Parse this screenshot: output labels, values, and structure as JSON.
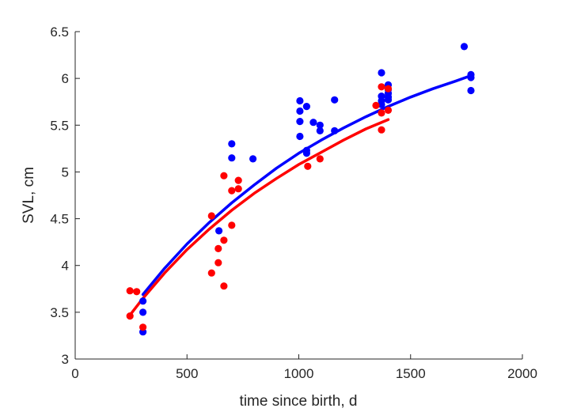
{
  "chart_data": {
    "type": "scatter",
    "xlabel": "time since birth, d",
    "ylabel": "SVL, cm",
    "xlim": [
      0,
      2000
    ],
    "ylim": [
      3,
      6.5
    ],
    "xticks": [
      "0",
      "500",
      "1000",
      "1500",
      "2000"
    ],
    "yticks": [
      "3",
      "3.5",
      "4",
      "4.5",
      "5",
      "5.5",
      "6",
      "6.5"
    ],
    "grid": false,
    "legend": "none",
    "series": [
      {
        "color": "#0000ff",
        "points": [
          [
            303,
            3.29
          ],
          [
            303,
            3.5
          ],
          [
            303,
            3.62
          ],
          [
            643,
            4.37
          ],
          [
            700,
            5.15
          ],
          [
            700,
            5.3
          ],
          [
            795,
            5.14
          ],
          [
            1005,
            5.38
          ],
          [
            1005,
            5.54
          ],
          [
            1005,
            5.65
          ],
          [
            1005,
            5.76
          ],
          [
            1035,
            5.2
          ],
          [
            1035,
            5.23
          ],
          [
            1035,
            5.7
          ],
          [
            1065,
            5.53
          ],
          [
            1095,
            5.44
          ],
          [
            1095,
            5.5
          ],
          [
            1160,
            5.77
          ],
          [
            1160,
            5.44
          ],
          [
            1370,
            5.72
          ],
          [
            1370,
            5.76
          ],
          [
            1370,
            5.81
          ],
          [
            1370,
            6.06
          ],
          [
            1400,
            5.77
          ],
          [
            1400,
            5.8
          ],
          [
            1400,
            5.84
          ],
          [
            1400,
            5.88
          ],
          [
            1400,
            5.93
          ],
          [
            1740,
            6.34
          ],
          [
            1770,
            5.87
          ],
          [
            1770,
            6.01
          ],
          [
            1770,
            6.04
          ]
        ],
        "fit": [
          [
            303,
            3.69
          ],
          [
            400,
            3.97
          ],
          [
            500,
            4.23
          ],
          [
            600,
            4.46
          ],
          [
            700,
            4.67
          ],
          [
            800,
            4.86
          ],
          [
            900,
            5.04
          ],
          [
            1000,
            5.2
          ],
          [
            1100,
            5.34
          ],
          [
            1200,
            5.47
          ],
          [
            1300,
            5.59
          ],
          [
            1400,
            5.7
          ],
          [
            1500,
            5.8
          ],
          [
            1600,
            5.89
          ],
          [
            1700,
            5.97
          ],
          [
            1770,
            6.03
          ]
        ]
      },
      {
        "color": "#ff0000",
        "points": [
          [
            245,
            3.46
          ],
          [
            245,
            3.73
          ],
          [
            275,
            3.72
          ],
          [
            303,
            3.34
          ],
          [
            610,
            3.92
          ],
          [
            610,
            4.53
          ],
          [
            640,
            4.03
          ],
          [
            640,
            4.18
          ],
          [
            665,
            3.78
          ],
          [
            665,
            4.27
          ],
          [
            665,
            4.96
          ],
          [
            700,
            4.43
          ],
          [
            700,
            4.8
          ],
          [
            730,
            4.82
          ],
          [
            730,
            4.91
          ],
          [
            1040,
            5.06
          ],
          [
            1095,
            5.14
          ],
          [
            1345,
            5.71
          ],
          [
            1370,
            5.45
          ],
          [
            1370,
            5.63
          ],
          [
            1370,
            5.91
          ],
          [
            1400,
            5.66
          ],
          [
            1400,
            5.89
          ]
        ],
        "fit": [
          [
            245,
            3.47
          ],
          [
            300,
            3.64
          ],
          [
            400,
            3.92
          ],
          [
            500,
            4.17
          ],
          [
            600,
            4.39
          ],
          [
            700,
            4.59
          ],
          [
            800,
            4.77
          ],
          [
            900,
            4.93
          ],
          [
            1000,
            5.08
          ],
          [
            1100,
            5.21
          ],
          [
            1200,
            5.34
          ],
          [
            1300,
            5.46
          ],
          [
            1400,
            5.56
          ]
        ]
      }
    ]
  }
}
